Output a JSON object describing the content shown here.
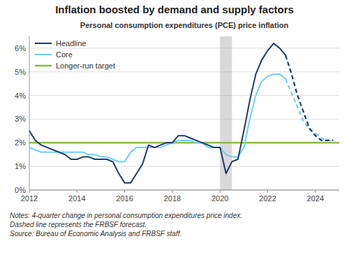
{
  "chart_data": {
    "type": "line",
    "title": "Inflation boosted by demand and supply factors",
    "subtitle": "Personal consumption expenditures (PCE) price inflation",
    "notes": "Notes: 4-quarter change in personal consumption expenditures price index.\nDashed line represents the FRBSF forecast.\nSource: Bureau of Economic Analysis and FRBSF staff.",
    "xlim": [
      2012,
      2025.0
    ],
    "xticks": [
      2012,
      2014,
      2016,
      2018,
      2020,
      2022,
      2024
    ],
    "ylim": [
      0.0,
      0.065
    ],
    "yticks": [
      {
        "value": 0.0,
        "label": "0%"
      },
      {
        "value": 0.01,
        "label": "1%"
      },
      {
        "value": 0.02,
        "label": "2%"
      },
      {
        "value": 0.03,
        "label": "3%"
      },
      {
        "value": 0.04,
        "label": "4%"
      },
      {
        "value": 0.05,
        "label": "5%"
      },
      {
        "value": 0.06,
        "label": "6%"
      }
    ],
    "grid": true,
    "legend": "upper left",
    "shading": {
      "start": 2020.0,
      "end": 2020.5,
      "color": "#aaaaaa"
    },
    "target": {
      "name": "Longer-run target",
      "value": 0.02,
      "color": "#8db84a"
    },
    "series": [
      {
        "name": "Headline",
        "color": "#1b3a6b",
        "x": [
          2012.0,
          2012.25,
          2012.5,
          2012.75,
          2013.0,
          2013.25,
          2013.5,
          2013.75,
          2014.0,
          2014.25,
          2014.5,
          2014.75,
          2015.0,
          2015.25,
          2015.5,
          2015.75,
          2016.0,
          2016.25,
          2016.5,
          2016.75,
          2017.0,
          2017.25,
          2017.5,
          2017.75,
          2018.0,
          2018.25,
          2018.5,
          2018.75,
          2019.0,
          2019.25,
          2019.5,
          2019.75,
          2020.0,
          2020.25,
          2020.5,
          2020.75,
          2021.0,
          2021.25,
          2021.5,
          2021.75,
          2022.0,
          2022.25,
          2022.5,
          2022.75
        ],
        "values": [
          0.025,
          0.021,
          0.019,
          0.018,
          0.017,
          0.016,
          0.015,
          0.013,
          0.013,
          0.014,
          0.014,
          0.013,
          0.013,
          0.013,
          0.012,
          0.007,
          0.003,
          0.003,
          0.007,
          0.011,
          0.019,
          0.018,
          0.019,
          0.02,
          0.02,
          0.023,
          0.023,
          0.022,
          0.021,
          0.02,
          0.019,
          0.018,
          0.018,
          0.007,
          0.012,
          0.013,
          0.025,
          0.038,
          0.049,
          0.055,
          0.059,
          0.062,
          0.06,
          0.057
        ],
        "forecast_x": [
          2022.75,
          2023.0,
          2023.25,
          2023.5,
          2023.75,
          2024.0,
          2024.25,
          2024.5,
          2024.75
        ],
        "forecast_values": [
          0.057,
          0.049,
          0.04,
          0.033,
          0.026,
          0.023,
          0.021,
          0.021,
          0.021
        ],
        "forecast_line_style": "dashed"
      },
      {
        "name": "Core",
        "color": "#6dcff6",
        "x": [
          2012.0,
          2012.25,
          2012.5,
          2012.75,
          2013.0,
          2013.25,
          2013.5,
          2013.75,
          2014.0,
          2014.25,
          2014.5,
          2014.75,
          2015.0,
          2015.25,
          2015.5,
          2015.75,
          2016.0,
          2016.25,
          2016.5,
          2016.75,
          2017.0,
          2017.25,
          2017.5,
          2017.75,
          2018.0,
          2018.25,
          2018.5,
          2018.75,
          2019.0,
          2019.25,
          2019.5,
          2019.75,
          2020.0,
          2020.25,
          2020.5,
          2020.75,
          2021.0,
          2021.25,
          2021.5,
          2021.75,
          2022.0,
          2022.25,
          2022.5,
          2022.75
        ],
        "values": [
          0.018,
          0.017,
          0.016,
          0.016,
          0.016,
          0.016,
          0.016,
          0.016,
          0.016,
          0.016,
          0.015,
          0.015,
          0.014,
          0.014,
          0.013,
          0.012,
          0.012,
          0.016,
          0.018,
          0.018,
          0.018,
          0.018,
          0.018,
          0.019,
          0.02,
          0.021,
          0.021,
          0.021,
          0.02,
          0.02,
          0.018,
          0.018,
          0.018,
          0.015,
          0.014,
          0.014,
          0.018,
          0.03,
          0.04,
          0.046,
          0.048,
          0.049,
          0.049,
          0.047
        ],
        "forecast_x": [
          2022.75,
          2023.0,
          2023.25,
          2023.5,
          2023.75,
          2024.0,
          2024.25,
          2024.5,
          2024.75
        ],
        "forecast_values": [
          0.047,
          0.041,
          0.035,
          0.029,
          0.026,
          0.024,
          0.022,
          0.021,
          0.021
        ],
        "forecast_line_style": "dashed"
      }
    ]
  }
}
